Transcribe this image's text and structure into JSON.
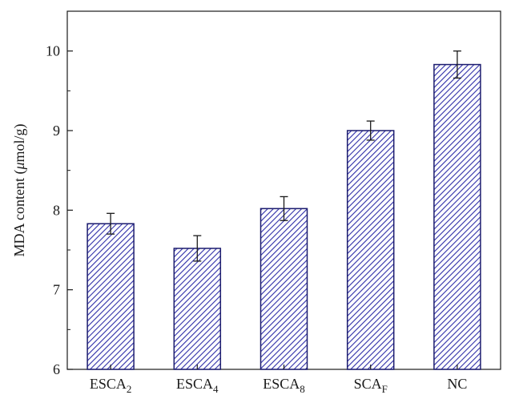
{
  "chart_data": {
    "type": "bar",
    "title": "",
    "xlabel": "",
    "ylabel": "MDA content (μmol/g)",
    "ylabel_parts": {
      "before": "MDA content (",
      "mu": "μ",
      "after": "mol/g)"
    },
    "ylim": [
      6,
      10.5
    ],
    "yticks": [
      "6",
      "7",
      "8",
      "9",
      "10"
    ],
    "categories": [
      "ESCA2",
      "ESCA4",
      "ESCA8",
      "SCAF",
      "NC"
    ],
    "category_labels": [
      {
        "base": "ESCA",
        "sub": "2"
      },
      {
        "base": "ESCA",
        "sub": "4"
      },
      {
        "base": "ESCA",
        "sub": "8"
      },
      {
        "base": "SCA",
        "sub": "F"
      },
      {
        "base": "NC",
        "sub": ""
      }
    ],
    "values": [
      7.83,
      7.52,
      8.02,
      9.0,
      9.83
    ],
    "errors": [
      0.13,
      0.16,
      0.15,
      0.12,
      0.17
    ],
    "colors": {
      "bar_stroke": "#1c1c6e",
      "hatch": "#2e2ea8",
      "bar_fill": "#ffffff",
      "axis": "#1a1a1a"
    },
    "grid": false
  }
}
